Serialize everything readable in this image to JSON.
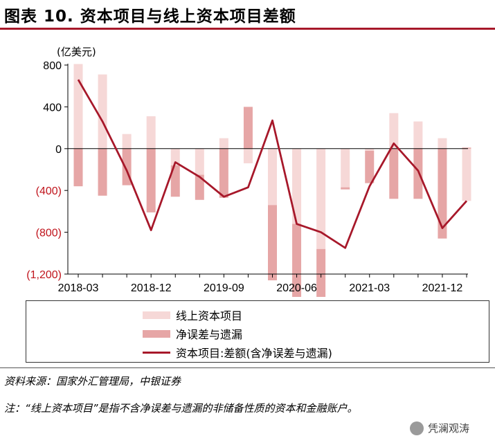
{
  "title": "图表 10. 资本项目与线上资本项目差额",
  "unit_label": "(亿美元)",
  "source": "资料来源：国家外汇管理局，中银证券",
  "note": "注：“线上资本项目”是指不含净误差与遗漏的非储备性质的资本和金融账户。",
  "watermark": "凭澜观涛",
  "colors": {
    "online_capital": "#f6d8d7",
    "errors_omissions": "#e6a6a6",
    "capital_diff": "#a7182a",
    "title_rule": "#a7182a"
  },
  "chart_data": {
    "type": "bar",
    "categories": [
      "2018-03",
      "2018-06",
      "2018-09",
      "2018-12",
      "2019-03",
      "2019-06",
      "2019-09",
      "2019-12",
      "2020-03",
      "2020-06",
      "2020-09",
      "2020-12",
      "2021-03",
      "2021-06",
      "2021-09",
      "2021-12",
      "2022-03"
    ],
    "x_tick_labels": [
      "2018-03",
      "2018-12",
      "2019-09",
      "2020-06",
      "2021-03",
      "2021-12"
    ],
    "ylim": [
      -1200,
      800
    ],
    "y_ticks": [
      800,
      400,
      0,
      -400,
      -800,
      -1200
    ],
    "y_tick_labels": [
      "800",
      "400",
      "0",
      "(400)",
      "(800)",
      "(1,200)"
    ],
    "series": [
      {
        "name": "线上资本项目",
        "kind": "bar",
        "values": [
          810,
          710,
          140,
          310,
          -160,
          -250,
          100,
          -140,
          -540,
          -720,
          -960,
          -370,
          -20,
          340,
          260,
          100,
          -500
        ]
      },
      {
        "name": "净误差与遗漏",
        "kind": "bar",
        "values": [
          -360,
          -450,
          -350,
          -610,
          -300,
          -240,
          -470,
          400,
          -720,
          -760,
          -720,
          -20,
          -310,
          -480,
          -480,
          -860,
          10
        ]
      },
      {
        "name": "资本项目:差额(含净误差与遗漏)",
        "kind": "line",
        "values": [
          660,
          260,
          -210,
          -780,
          -130,
          -270,
          -460,
          -370,
          270,
          -720,
          -800,
          -950,
          -360,
          50,
          -210,
          -760,
          -500
        ]
      }
    ],
    "legend_position": "bottom",
    "grid": false
  }
}
